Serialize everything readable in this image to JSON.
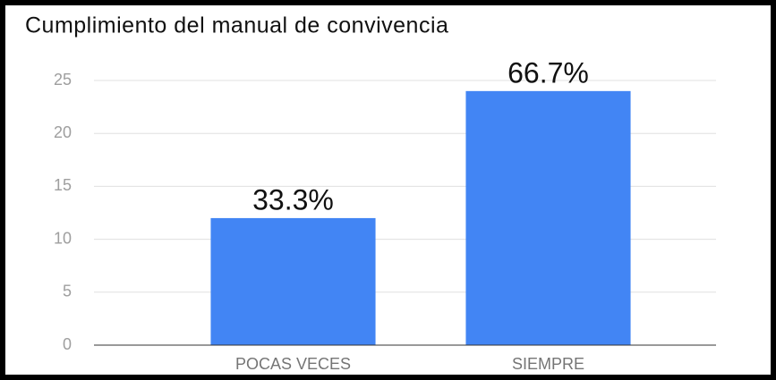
{
  "chart_data": {
    "type": "bar",
    "title": "Cumplimiento del manual de convivencia",
    "categories": [
      "POCAS VECES",
      "SIEMPRE"
    ],
    "values": [
      12,
      24
    ],
    "annotations": [
      "33.3%",
      "66.7%"
    ],
    "color": "#4285f4",
    "ylim": [
      0,
      25
    ],
    "yticks": [
      0,
      5,
      10,
      15,
      20,
      25
    ],
    "grid": true
  }
}
